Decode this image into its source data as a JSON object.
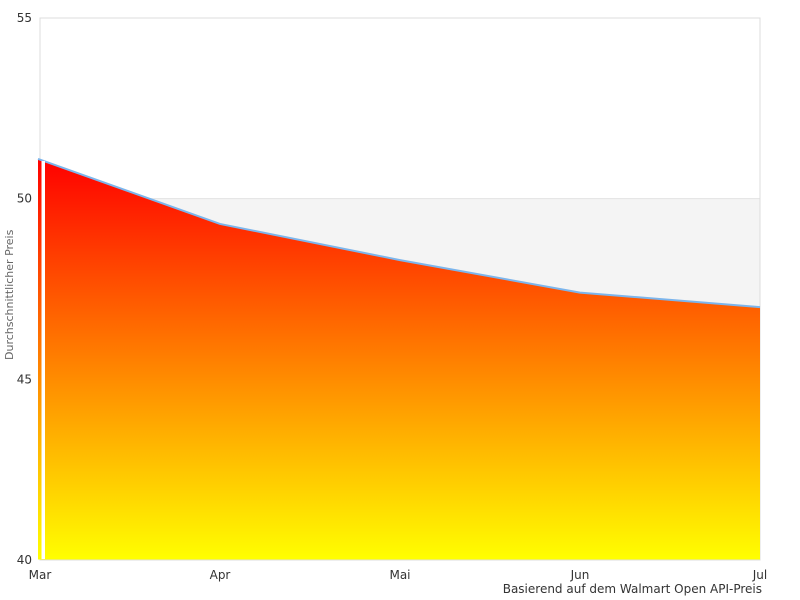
{
  "chart_data": {
    "type": "area",
    "title": "",
    "categories": [
      "Mar",
      "Apr",
      "Mai",
      "Jun",
      "Jul"
    ],
    "series": [
      {
        "name": "Durchschnittlicher Preis",
        "values": [
          51.1,
          49.3,
          48.3,
          47.4,
          47.0
        ]
      }
    ],
    "reference_level": 50,
    "xlabel": "",
    "ylabel": "Durchschnittlicher Preis",
    "caption": "Basierend auf dem Walmart Open API-Preis",
    "ylim": [
      40,
      55
    ],
    "yticks": [
      55,
      50,
      45,
      40
    ],
    "grid": false,
    "legend": "none",
    "colors": {
      "area_gradient_top": "#ff0000",
      "area_gradient_bottom": "#ffff00",
      "line": "#7cb5ec",
      "reference_band": "#f4f4f4",
      "reference_edge": "#e2e2e2",
      "border": "#dcdcdc",
      "tick_text": "#333333",
      "axis_title_text": "#666666"
    }
  }
}
